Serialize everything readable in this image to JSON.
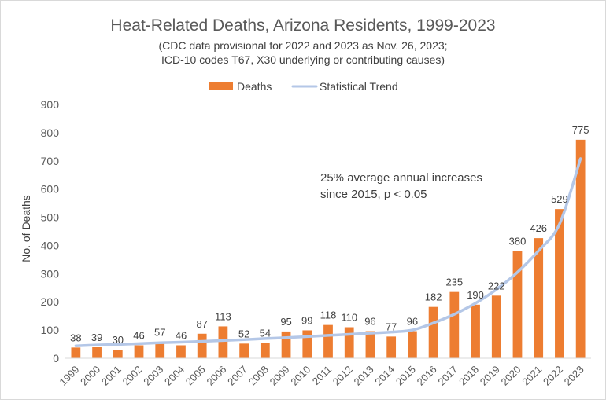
{
  "chart_data": {
    "type": "bar",
    "title": "Heat-Related Deaths, Arizona Residents, 1999-2023",
    "subtitle_lines": [
      "(CDC data provisional for 2022 and 2023 as Nov. 26, 2023;",
      "ICD-10 codes T67, X30 underlying or contributing causes)"
    ],
    "xlabel": "",
    "ylabel": "No. of Deaths",
    "ylim": [
      0,
      900
    ],
    "yticks": [
      0,
      100,
      200,
      300,
      400,
      500,
      600,
      700,
      800,
      900
    ],
    "grid": false,
    "legend_position": "top-center",
    "categories": [
      "1999",
      "2000",
      "2001",
      "2002",
      "2003",
      "2004",
      "2005",
      "2006",
      "2007",
      "2008",
      "2009",
      "2010",
      "2011",
      "2012",
      "2013",
      "2014",
      "2015",
      "2016",
      "2017",
      "2018",
      "2019",
      "2020",
      "2021",
      "2022",
      "2023"
    ],
    "series": [
      {
        "name": "Deaths",
        "type": "bar",
        "color": "#ed7d31",
        "values": [
          38,
          39,
          30,
          46,
          57,
          46,
          87,
          113,
          52,
          54,
          95,
          99,
          118,
          110,
          96,
          77,
          96,
          182,
          235,
          190,
          222,
          380,
          426,
          529,
          775
        ],
        "data_labels": true
      },
      {
        "name": "Statistical Trend",
        "type": "line",
        "color": "#b4c7e7",
        "values": [
          44,
          47,
          49,
          52,
          55,
          57,
          60,
          63,
          66,
          70,
          73,
          77,
          81,
          85,
          89,
          93,
          100,
          125,
          156,
          195,
          244,
          305,
          381,
          476,
          708
        ],
        "data_labels": false
      }
    ],
    "annotation": {
      "lines": [
        "25% average annual increases",
        "since 2015, p < 0.05"
      ]
    }
  }
}
